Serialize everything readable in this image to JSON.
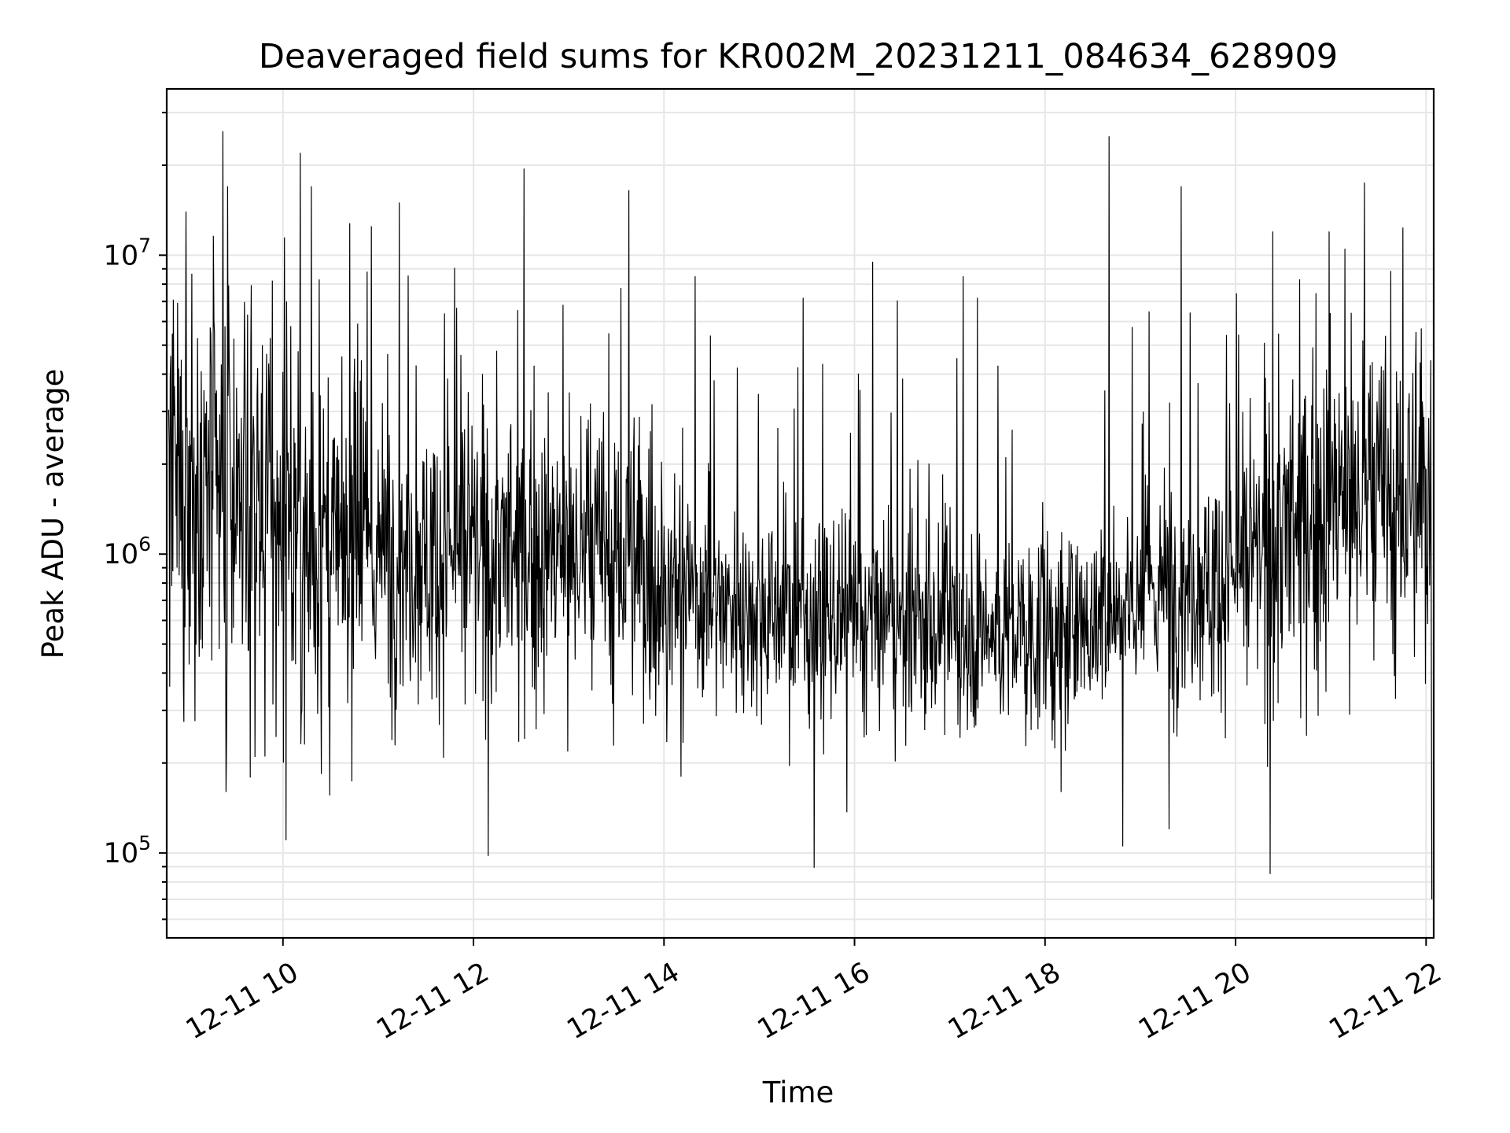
{
  "chart_data": {
    "type": "line",
    "title": "Deaveraged field sums for KR002M_20231211_084634_628909",
    "xlabel": "Time",
    "ylabel": "Peak ADU - average",
    "yscale": "log",
    "ylim": [
      52000,
      36000000
    ],
    "xlim_hours": [
      8.78,
      22.08
    ],
    "x_ticks": [
      {
        "hour": 10,
        "label": "12-11 10"
      },
      {
        "hour": 12,
        "label": "12-11 12"
      },
      {
        "hour": 14,
        "label": "12-11 14"
      },
      {
        "hour": 16,
        "label": "12-11 16"
      },
      {
        "hour": 18,
        "label": "12-11 18"
      },
      {
        "hour": 20,
        "label": "12-11 20"
      },
      {
        "hour": 22,
        "label": "12-11 22"
      }
    ],
    "y_ticks": [
      {
        "value": 100000,
        "base": "10",
        "exp": "5"
      },
      {
        "value": 1000000,
        "base": "10",
        "exp": "6"
      },
      {
        "value": 10000000,
        "base": "10",
        "exp": "7"
      }
    ],
    "grid": true,
    "line_color": "#000000",
    "baseline_trend": [
      {
        "hour": 8.8,
        "value": 1500000
      },
      {
        "hour": 9.5,
        "value": 1500000
      },
      {
        "hour": 10.5,
        "value": 1000000
      },
      {
        "hour": 12.0,
        "value": 1000000
      },
      {
        "hour": 13.5,
        "value": 1000000
      },
      {
        "hour": 14.5,
        "value": 700000
      },
      {
        "hour": 16.0,
        "value": 580000
      },
      {
        "hour": 17.5,
        "value": 550000
      },
      {
        "hour": 18.2,
        "value": 530000
      },
      {
        "hour": 19.0,
        "value": 750000
      },
      {
        "hour": 20.0,
        "value": 850000
      },
      {
        "hour": 21.0,
        "value": 1500000
      },
      {
        "hour": 22.0,
        "value": 1500000
      }
    ],
    "spikes": [
      {
        "hour": 9.37,
        "value": 26000000
      },
      {
        "hour": 9.42,
        "value": 17000000
      },
      {
        "hour": 8.98,
        "value": 14000000
      },
      {
        "hour": 10.18,
        "value": 22000000
      },
      {
        "hour": 10.3,
        "value": 17000000
      },
      {
        "hour": 10.93,
        "value": 12500000
      },
      {
        "hour": 11.22,
        "value": 15000000
      },
      {
        "hour": 12.53,
        "value": 19500000
      },
      {
        "hour": 13.63,
        "value": 16500000
      },
      {
        "hour": 14.33,
        "value": 8500000
      },
      {
        "hour": 15.46,
        "value": 7200000
      },
      {
        "hour": 16.19,
        "value": 9500000
      },
      {
        "hour": 17.14,
        "value": 8500000
      },
      {
        "hour": 17.29,
        "value": 7200000
      },
      {
        "hour": 18.67,
        "value": 25000000
      },
      {
        "hour": 19.43,
        "value": 17000000
      },
      {
        "hour": 20.39,
        "value": 12000000
      },
      {
        "hour": 20.98,
        "value": 12000000
      },
      {
        "hour": 21.35,
        "value": 17500000
      },
      {
        "hour": 19.3,
        "value": 120000
      },
      {
        "hour": 9.4,
        "value": 160000
      },
      {
        "hour": 14.18,
        "value": 180000
      },
      {
        "hour": 18.17,
        "value": 160000
      },
      {
        "hour": 22.06,
        "value": 70000
      }
    ]
  }
}
